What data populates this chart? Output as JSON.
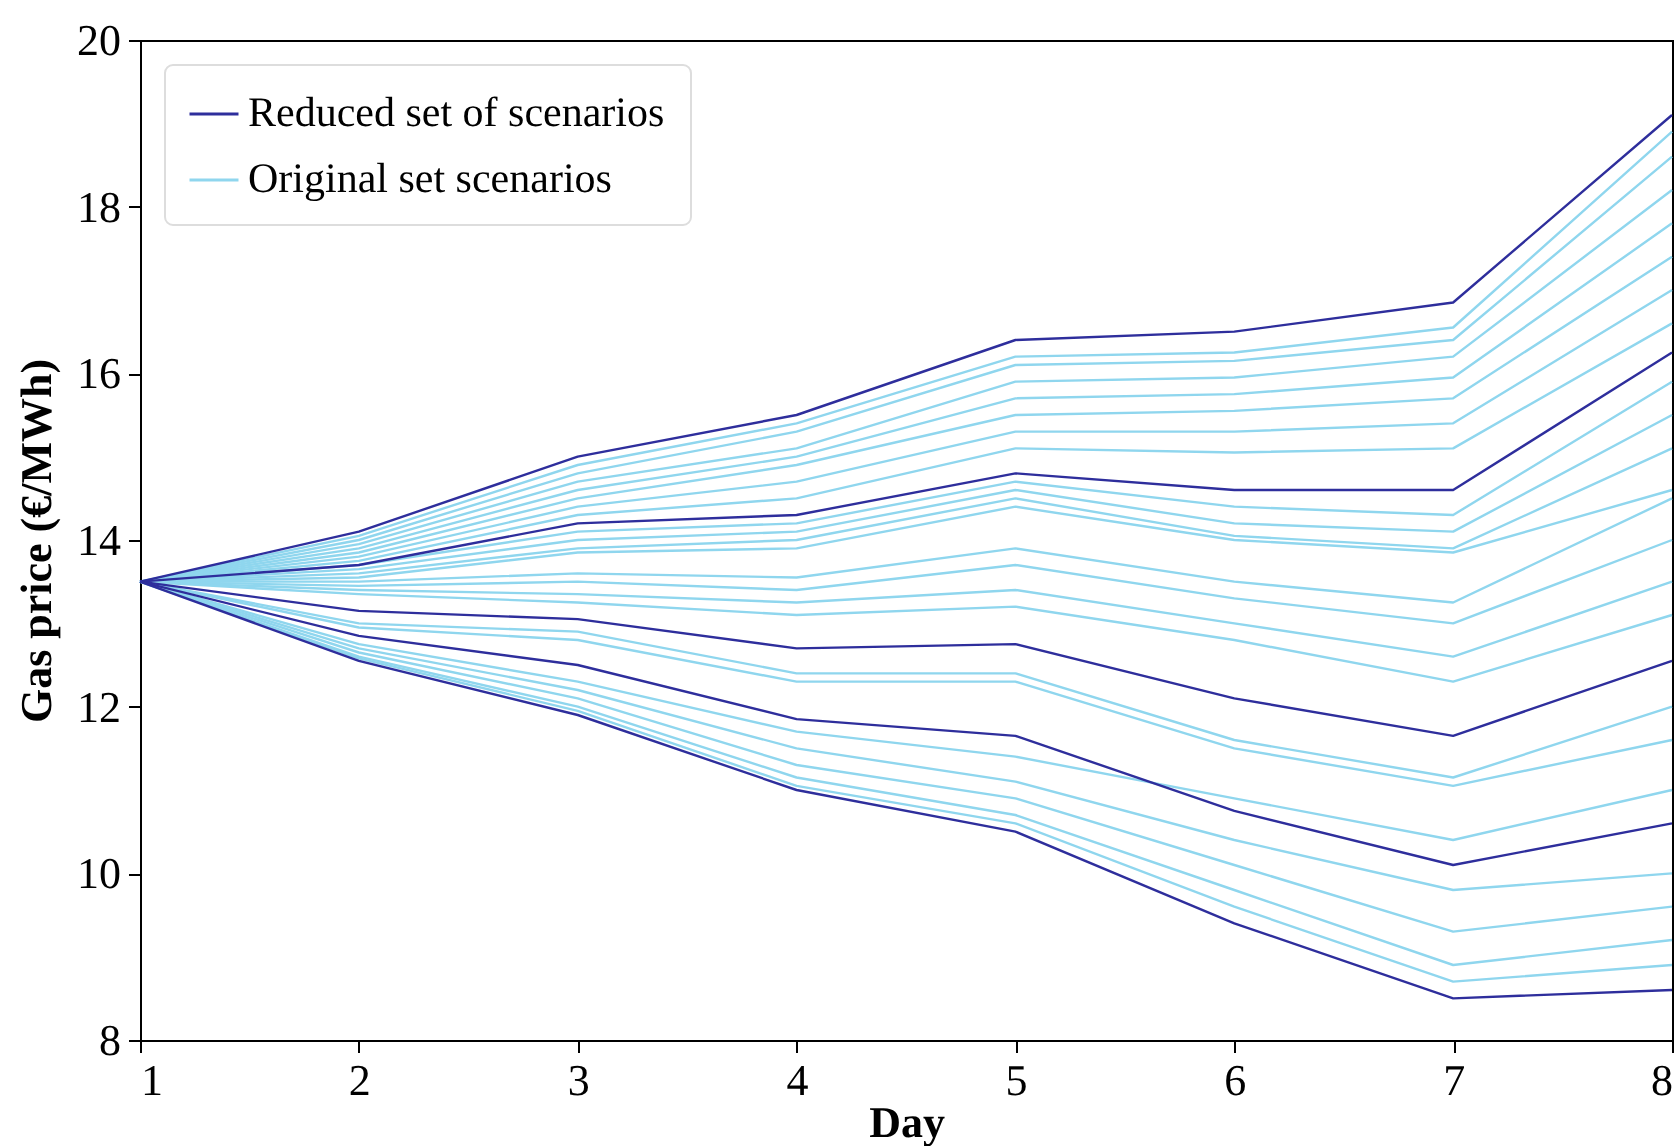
{
  "chart_data": {
    "type": "line",
    "xlabel": "Day",
    "ylabel": "Gas price (€/MWh)",
    "x": [
      1,
      2,
      3,
      4,
      5,
      6,
      7,
      8
    ],
    "xlim": [
      1,
      8
    ],
    "ylim": [
      8,
      20
    ],
    "xticks": [
      1,
      2,
      3,
      4,
      5,
      6,
      7,
      8
    ],
    "yticks": [
      8,
      10,
      12,
      14,
      16,
      18,
      20
    ],
    "grid": false,
    "legend": "top left",
    "marker": "none",
    "line_style": "solid",
    "series": [
      {
        "name": "Original set scenarios",
        "color": "#8fd6ee",
        "values": [
          13.5,
          14.05,
          14.9,
          15.4,
          16.2,
          16.25,
          16.55,
          18.9
        ]
      },
      {
        "color": "#8fd6ee",
        "values": [
          13.5,
          14.0,
          14.8,
          15.3,
          16.1,
          16.15,
          16.4,
          18.6
        ]
      },
      {
        "color": "#8fd6ee",
        "values": [
          13.5,
          13.95,
          14.7,
          15.1,
          15.9,
          15.95,
          16.2,
          18.2
        ]
      },
      {
        "color": "#8fd6ee",
        "values": [
          13.5,
          13.9,
          14.6,
          15.0,
          15.7,
          15.75,
          15.95,
          17.8
        ]
      },
      {
        "color": "#8fd6ee",
        "values": [
          13.5,
          13.85,
          14.5,
          14.9,
          15.5,
          15.55,
          15.7,
          17.4
        ]
      },
      {
        "color": "#8fd6ee",
        "values": [
          13.5,
          13.8,
          14.4,
          14.7,
          15.3,
          15.3,
          15.4,
          17.0
        ]
      },
      {
        "color": "#8fd6ee",
        "values": [
          13.5,
          13.75,
          14.3,
          14.5,
          15.1,
          15.05,
          15.1,
          16.6
        ]
      },
      {
        "color": "#8fd6ee",
        "values": [
          13.5,
          13.7,
          14.1,
          14.2,
          14.7,
          14.4,
          14.3,
          15.9
        ]
      },
      {
        "color": "#8fd6ee",
        "values": [
          13.5,
          13.65,
          14.0,
          14.1,
          14.6,
          14.2,
          14.1,
          15.5
        ]
      },
      {
        "color": "#8fd6ee",
        "values": [
          13.5,
          13.6,
          13.9,
          14.0,
          14.5,
          14.05,
          13.9,
          15.1
        ]
      },
      {
        "color": "#8fd6ee",
        "values": [
          13.5,
          13.55,
          13.85,
          13.9,
          14.4,
          14.0,
          13.85,
          14.6
        ]
      },
      {
        "color": "#8fd6ee",
        "values": [
          13.5,
          13.5,
          13.6,
          13.55,
          13.9,
          13.5,
          13.25,
          14.5
        ]
      },
      {
        "color": "#8fd6ee",
        "values": [
          13.5,
          13.45,
          13.5,
          13.4,
          13.7,
          13.3,
          13.0,
          14.0
        ]
      },
      {
        "color": "#8fd6ee",
        "values": [
          13.5,
          13.4,
          13.35,
          13.25,
          13.4,
          13.0,
          12.6,
          13.5
        ]
      },
      {
        "color": "#8fd6ee",
        "values": [
          13.5,
          13.35,
          13.25,
          13.1,
          13.2,
          12.8,
          12.3,
          13.1
        ]
      },
      {
        "color": "#8fd6ee",
        "values": [
          13.5,
          13.0,
          12.9,
          12.4,
          12.4,
          11.6,
          11.15,
          12.0
        ]
      },
      {
        "color": "#8fd6ee",
        "values": [
          13.5,
          12.95,
          12.8,
          12.3,
          12.3,
          11.5,
          11.05,
          11.6
        ]
      },
      {
        "color": "#8fd6ee",
        "values": [
          13.5,
          12.75,
          12.3,
          11.7,
          11.4,
          10.9,
          10.4,
          11.0
        ]
      },
      {
        "color": "#8fd6ee",
        "values": [
          13.5,
          12.7,
          12.2,
          11.5,
          11.1,
          10.4,
          9.8,
          10.0
        ]
      },
      {
        "color": "#8fd6ee",
        "values": [
          13.5,
          12.65,
          12.1,
          11.3,
          10.9,
          10.1,
          9.3,
          9.6
        ]
      },
      {
        "color": "#8fd6ee",
        "values": [
          13.5,
          12.6,
          12.0,
          11.15,
          10.7,
          9.8,
          8.9,
          9.2
        ]
      },
      {
        "color": "#8fd6ee",
        "values": [
          13.5,
          12.58,
          11.95,
          11.05,
          10.6,
          9.6,
          8.7,
          8.9
        ]
      },
      {
        "name": "Reduced set of scenarios",
        "color": "#2e2e9c",
        "values": [
          13.5,
          14.1,
          15.0,
          15.5,
          16.4,
          16.5,
          16.85,
          19.1
        ]
      },
      {
        "color": "#2e2e9c",
        "values": [
          13.5,
          13.7,
          14.2,
          14.3,
          14.8,
          14.6,
          14.6,
          16.25
        ]
      },
      {
        "color": "#2e2e9c",
        "values": [
          13.5,
          13.15,
          13.05,
          12.7,
          12.75,
          12.1,
          11.65,
          12.55
        ]
      },
      {
        "color": "#2e2e9c",
        "values": [
          13.5,
          12.85,
          12.5,
          11.85,
          11.65,
          10.75,
          10.1,
          10.6
        ]
      },
      {
        "color": "#2e2e9c",
        "values": [
          13.5,
          12.55,
          11.9,
          11.0,
          10.5,
          9.4,
          8.5,
          8.6
        ]
      }
    ]
  }
}
